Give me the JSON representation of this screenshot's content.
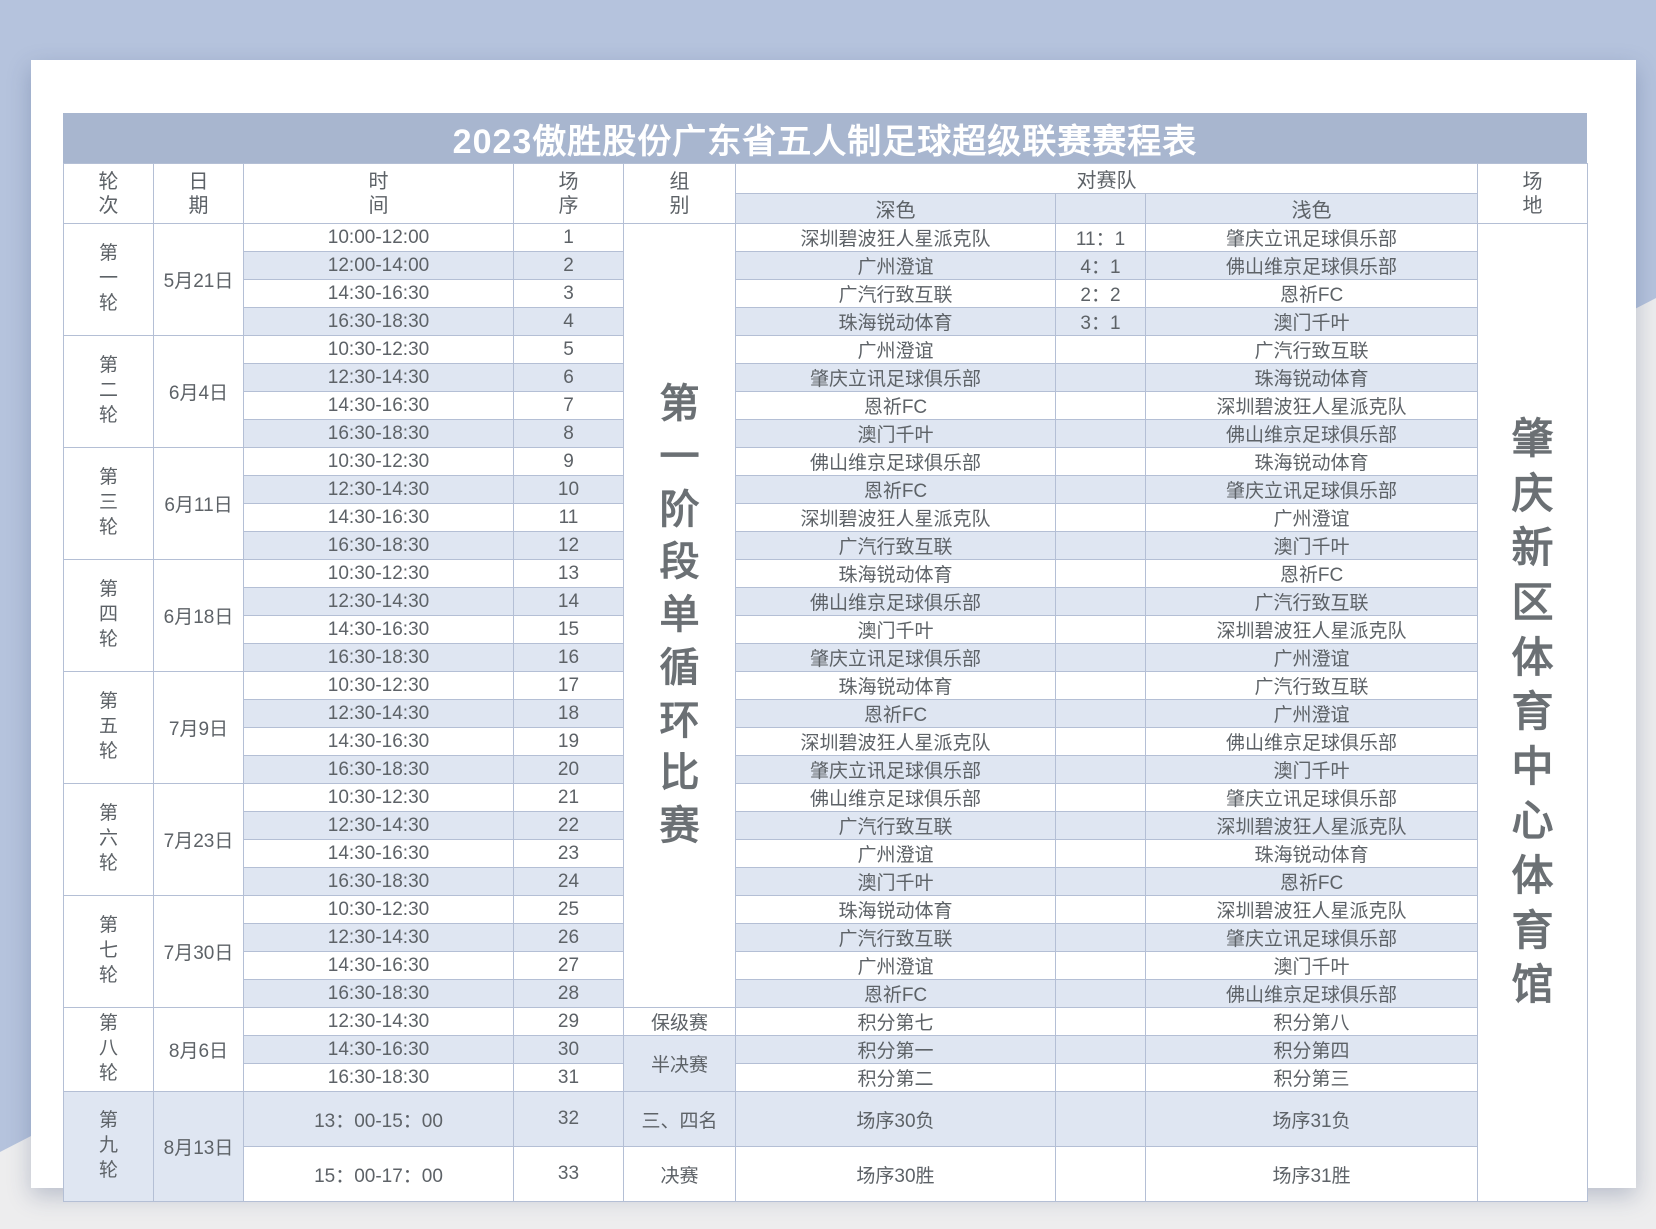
{
  "title": "2023傲胜股份广东省五人制足球超级联赛赛程表",
  "venue": "肇庆新区体育中心体育馆",
  "header": {
    "round": "轮次",
    "date": "日期",
    "time": "时间",
    "order": "场序",
    "group": "组别",
    "teams": "对赛队",
    "dark": "深色",
    "light": "浅色",
    "venue": "场地"
  },
  "stage1_label": "第一阶段单循环比赛",
  "colors": {
    "background_blue": "#b5c3dd",
    "background_gray": "#ededee",
    "title_bar": "#a8b6cf",
    "row_tint": "#dfe6f2",
    "border": "#b4bfd5",
    "text": "#5d6267"
  },
  "rounds": [
    {
      "name": "第一轮",
      "date": "5月21日",
      "matches": [
        {
          "order": 1,
          "time": "10:00-12:00",
          "dark": "深圳碧波狂人星派克队",
          "score": "11：1",
          "light": "肇庆立讯足球俱乐部",
          "group": {
            "label": "第一阶段单循环比赛",
            "rowspan": 28,
            "vertical": true
          }
        },
        {
          "order": 2,
          "time": "12:00-14:00",
          "dark": "广州澄谊",
          "score": "4：1",
          "light": "佛山维京足球俱乐部"
        },
        {
          "order": 3,
          "time": "14:30-16:30",
          "dark": "广汽行致互联",
          "score": "2：2",
          "light": "恩祈FC"
        },
        {
          "order": 4,
          "time": "16:30-18:30",
          "dark": "珠海锐动体育",
          "score": "3：1",
          "light": "澳门千叶"
        }
      ]
    },
    {
      "name": "第二轮",
      "date": "6月4日",
      "matches": [
        {
          "order": 5,
          "time": "10:30-12:30",
          "dark": "广州澄谊",
          "score": "",
          "light": "广汽行致互联"
        },
        {
          "order": 6,
          "time": "12:30-14:30",
          "dark": "肇庆立讯足球俱乐部",
          "score": "",
          "light": "珠海锐动体育"
        },
        {
          "order": 7,
          "time": "14:30-16:30",
          "dark": "恩祈FC",
          "score": "",
          "light": "深圳碧波狂人星派克队"
        },
        {
          "order": 8,
          "time": "16:30-18:30",
          "dark": "澳门千叶",
          "score": "",
          "light": "佛山维京足球俱乐部"
        }
      ]
    },
    {
      "name": "第三轮",
      "date": "6月11日",
      "matches": [
        {
          "order": 9,
          "time": "10:30-12:30",
          "dark": "佛山维京足球俱乐部",
          "score": "",
          "light": "珠海锐动体育"
        },
        {
          "order": 10,
          "time": "12:30-14:30",
          "dark": "恩祈FC",
          "score": "",
          "light": "肇庆立讯足球俱乐部"
        },
        {
          "order": 11,
          "time": "14:30-16:30",
          "dark": "深圳碧波狂人星派克队",
          "score": "",
          "light": "广州澄谊"
        },
        {
          "order": 12,
          "time": "16:30-18:30",
          "dark": "广汽行致互联",
          "score": "",
          "light": "澳门千叶"
        }
      ]
    },
    {
      "name": "第四轮",
      "date": "6月18日",
      "matches": [
        {
          "order": 13,
          "time": "10:30-12:30",
          "dark": "珠海锐动体育",
          "score": "",
          "light": "恩祈FC"
        },
        {
          "order": 14,
          "time": "12:30-14:30",
          "dark": "佛山维京足球俱乐部",
          "score": "",
          "light": "广汽行致互联"
        },
        {
          "order": 15,
          "time": "14:30-16:30",
          "dark": "澳门千叶",
          "score": "",
          "light": "深圳碧波狂人星派克队"
        },
        {
          "order": 16,
          "time": "16:30-18:30",
          "dark": "肇庆立讯足球俱乐部",
          "score": "",
          "light": "广州澄谊"
        }
      ]
    },
    {
      "name": "第五轮",
      "date": "7月9日",
      "matches": [
        {
          "order": 17,
          "time": "10:30-12:30",
          "dark": "珠海锐动体育",
          "score": "",
          "light": "广汽行致互联"
        },
        {
          "order": 18,
          "time": "12:30-14:30",
          "dark": "恩祈FC",
          "score": "",
          "light": "广州澄谊"
        },
        {
          "order": 19,
          "time": "14:30-16:30",
          "dark": "深圳碧波狂人星派克队",
          "score": "",
          "light": "佛山维京足球俱乐部"
        },
        {
          "order": 20,
          "time": "16:30-18:30",
          "dark": "肇庆立讯足球俱乐部",
          "score": "",
          "light": "澳门千叶"
        }
      ]
    },
    {
      "name": "第六轮",
      "date": "7月23日",
      "matches": [
        {
          "order": 21,
          "time": "10:30-12:30",
          "dark": "佛山维京足球俱乐部",
          "score": "",
          "light": "肇庆立讯足球俱乐部"
        },
        {
          "order": 22,
          "time": "12:30-14:30",
          "dark": "广汽行致互联",
          "score": "",
          "light": "深圳碧波狂人星派克队"
        },
        {
          "order": 23,
          "time": "14:30-16:30",
          "dark": "广州澄谊",
          "score": "",
          "light": "珠海锐动体育"
        },
        {
          "order": 24,
          "time": "16:30-18:30",
          "dark": "澳门千叶",
          "score": "",
          "light": "恩祈FC"
        }
      ]
    },
    {
      "name": "第七轮",
      "date": "7月30日",
      "matches": [
        {
          "order": 25,
          "time": "10:30-12:30",
          "dark": "珠海锐动体育",
          "score": "",
          "light": "深圳碧波狂人星派克队"
        },
        {
          "order": 26,
          "time": "12:30-14:30",
          "dark": "广汽行致互联",
          "score": "",
          "light": "肇庆立讯足球俱乐部"
        },
        {
          "order": 27,
          "time": "14:30-16:30",
          "dark": "广州澄谊",
          "score": "",
          "light": "澳门千叶"
        },
        {
          "order": 28,
          "time": "16:30-18:30",
          "dark": "恩祈FC",
          "score": "",
          "light": "佛山维京足球俱乐部"
        }
      ]
    },
    {
      "name": "第八轮",
      "date": "8月6日",
      "matches": [
        {
          "order": 29,
          "time": "12:30-14:30",
          "dark": "积分第七",
          "score": "",
          "light": "积分第八",
          "group": {
            "label": "保级赛",
            "rowspan": 1
          }
        },
        {
          "order": 30,
          "time": "14:30-16:30",
          "dark": "积分第一",
          "score": "",
          "light": "积分第四",
          "group": {
            "label": "半决赛",
            "rowspan": 2
          }
        },
        {
          "order": 31,
          "time": "16:30-18:30",
          "dark": "积分第二",
          "score": "",
          "light": "积分第三"
        }
      ]
    },
    {
      "name": "第九轮",
      "date": "8月13日",
      "tint": true,
      "matches": [
        {
          "order": 32,
          "time": "13：00-15：00",
          "dark": "场序30负",
          "score": "",
          "light": "场序31负",
          "tall": true,
          "group": {
            "label": "三、四名",
            "rowspan": 1,
            "tint": true
          }
        },
        {
          "order": 33,
          "time": "15：00-17：00",
          "dark": "场序30胜",
          "score": "",
          "light": "场序31胜",
          "tall": true,
          "group": {
            "label": "决赛",
            "rowspan": 1
          }
        }
      ]
    }
  ]
}
